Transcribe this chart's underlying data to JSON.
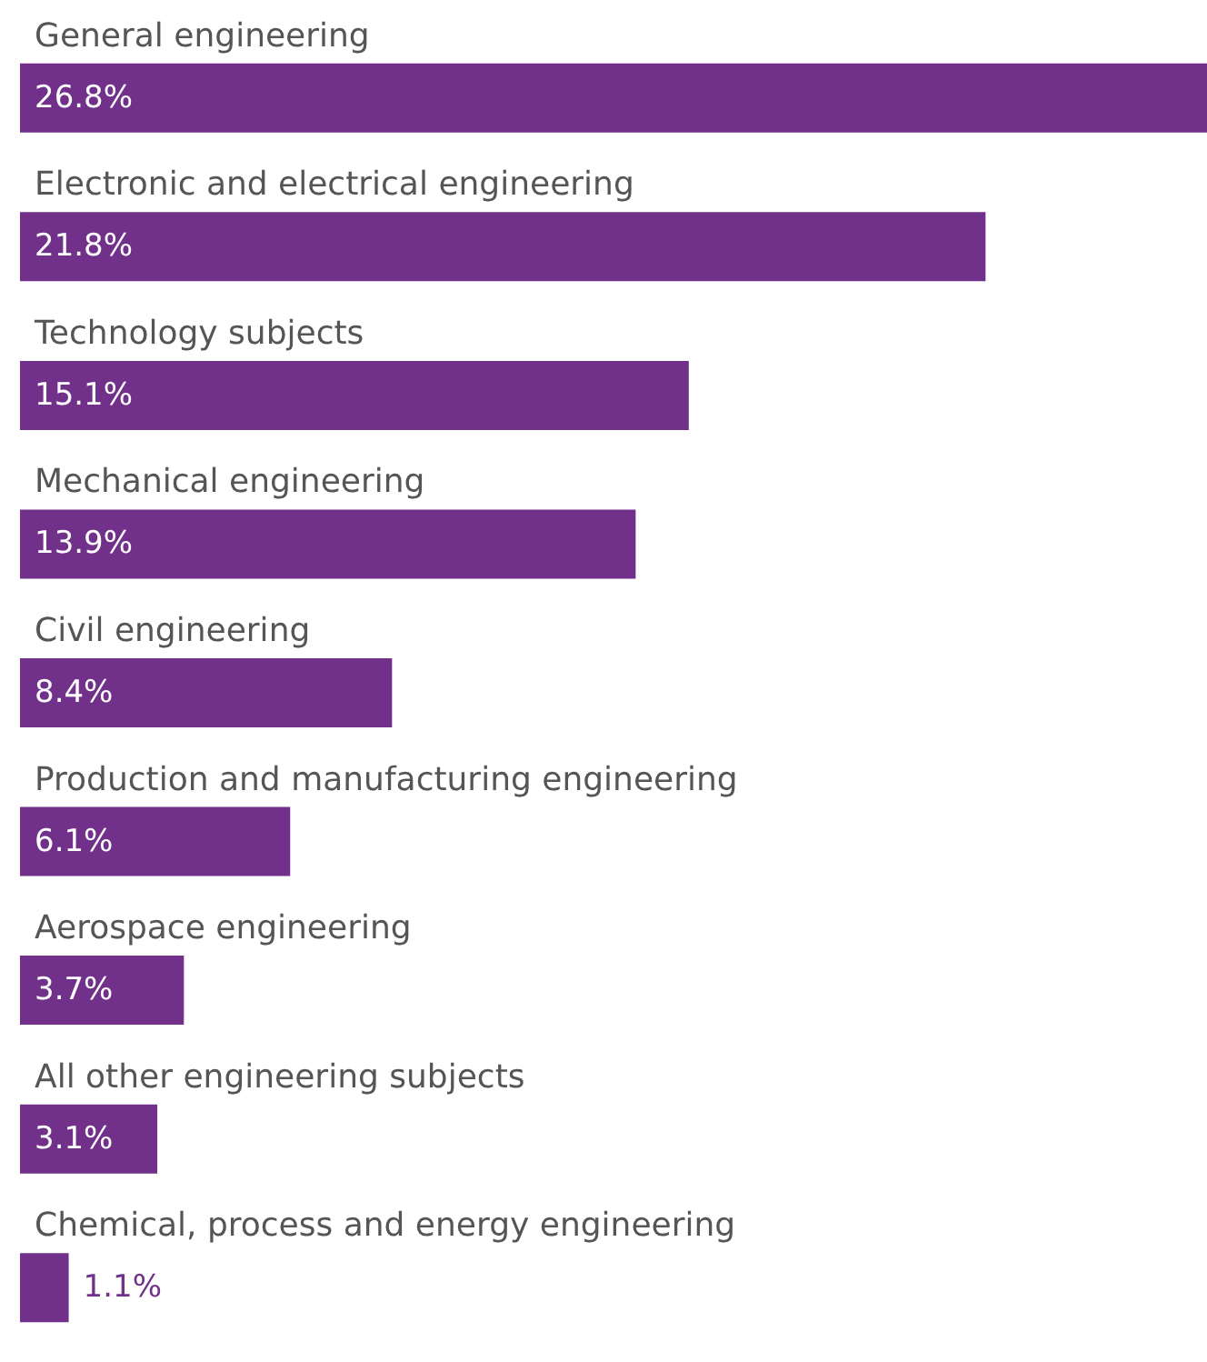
{
  "chart_data": {
    "type": "bar",
    "orientation": "horizontal",
    "color": "#71308a",
    "value_labels": [
      "26.8%",
      "21.8%",
      "15.1%",
      "13.9%",
      "8.4%",
      "6.1%",
      "3.7%",
      "3.1%",
      "1.1%"
    ],
    "categories": [
      "General engineering",
      "Electronic and electrical engineering",
      "Technology subjects",
      "Mechanical engineering",
      "Civil engineering",
      "Production and manufacturing engineering",
      "Aerospace engineering",
      "All other engineering subjects",
      "Chemical, process and energy engineering"
    ],
    "values": [
      26.8,
      21.8,
      15.1,
      13.9,
      8.4,
      6.1,
      3.7,
      3.1,
      1.1
    ]
  }
}
